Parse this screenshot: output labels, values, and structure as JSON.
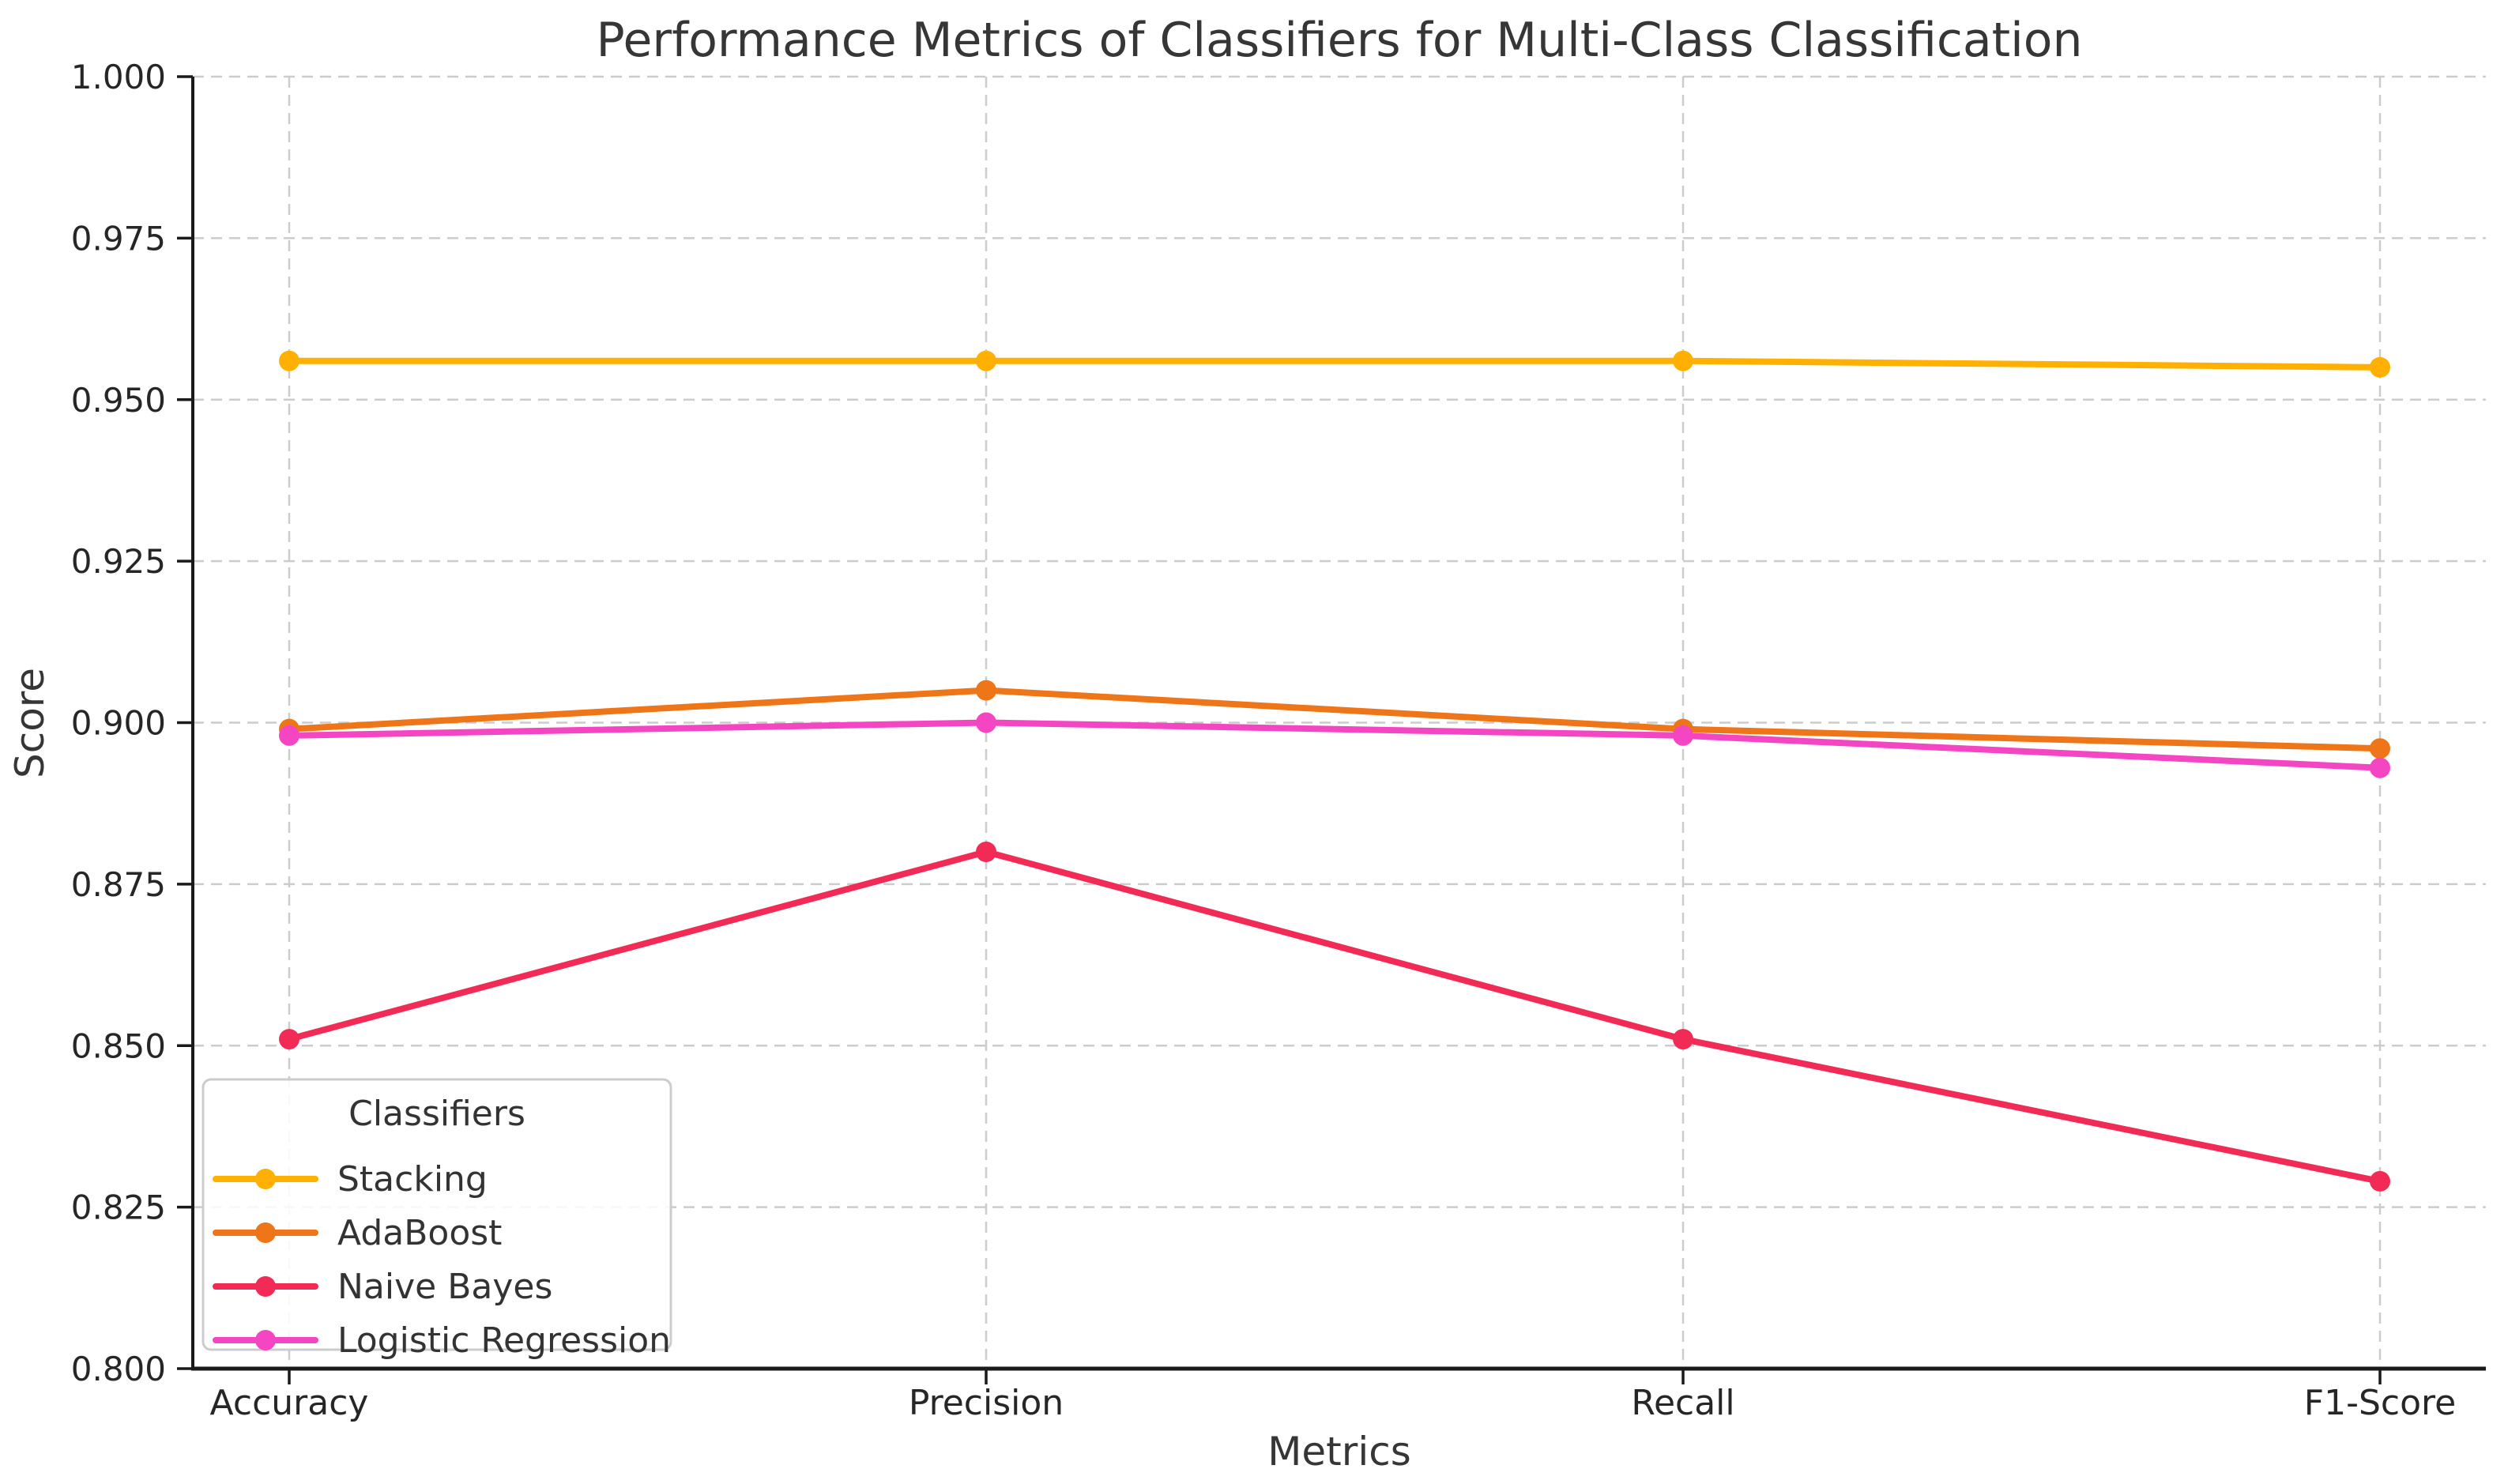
{
  "chart_data": {
    "type": "line",
    "title": "Performance Metrics of Classifiers for Multi-Class Classification",
    "xlabel": "Metrics",
    "ylabel": "Score",
    "categories": [
      "Accuracy",
      "Precision",
      "Recall",
      "F1-Score"
    ],
    "ylim": [
      0.8,
      1.0
    ],
    "yticks": [
      "0.800",
      "0.825",
      "0.850",
      "0.875",
      "0.900",
      "0.925",
      "0.950",
      "0.975",
      "1.000"
    ],
    "grid": "dashed-both-directions",
    "legend": {
      "title": "Classifiers",
      "position": "lower-left"
    },
    "series": [
      {
        "name": "Stacking",
        "color": "#FFB000",
        "values": [
          0.956,
          0.956,
          0.956,
          0.955
        ]
      },
      {
        "name": "AdaBoost",
        "color": "#EE7518",
        "values": [
          0.899,
          0.905,
          0.899,
          0.896
        ]
      },
      {
        "name": "Naive Bayes",
        "color": "#F12B55",
        "values": [
          0.851,
          0.88,
          0.851,
          0.829
        ]
      },
      {
        "name": "Logistic Regression",
        "color": "#F446C3",
        "values": [
          0.898,
          0.9,
          0.898,
          0.893
        ]
      }
    ],
    "style": {
      "grid_color": "#cccccc",
      "spine_color": "#1a1a1a",
      "text_color": "#363636",
      "tick_text_color": "#262626",
      "legend_border_color": "#cccccc",
      "background": "#ffffff"
    }
  }
}
